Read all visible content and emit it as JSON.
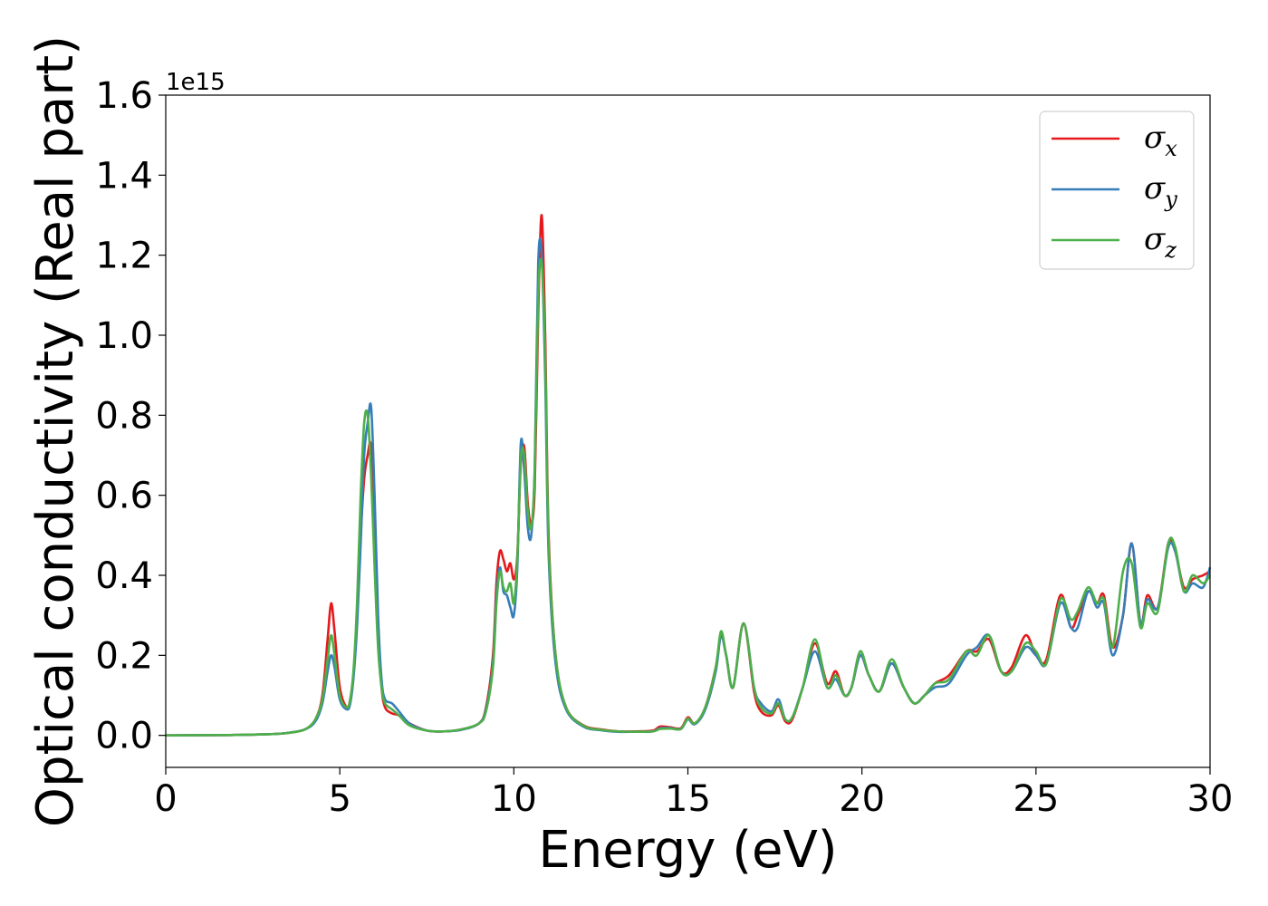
{
  "chart_data": {
    "type": "line",
    "title": "",
    "xlabel": "Energy (eV)",
    "ylabel": "Optical conductivity (Real part)",
    "y_offset_label": "1e15",
    "xlim": [
      0,
      30
    ],
    "ylim": [
      -0.08,
      1.6
    ],
    "xticks": [
      "0",
      "5",
      "10",
      "15",
      "20",
      "25",
      "30"
    ],
    "yticks": [
      "0.0",
      "0.2",
      "0.4",
      "0.6",
      "0.8",
      "1.0",
      "1.2",
      "1.4",
      "1.6"
    ],
    "grid": false,
    "legend_position": "top-right",
    "x": [
      0,
      2,
      3,
      3.5,
      4,
      4.3,
      4.5,
      4.65,
      4.75,
      4.85,
      5.0,
      5.2,
      5.3,
      5.4,
      5.5,
      5.6,
      5.7,
      5.8,
      5.9,
      6.0,
      6.1,
      6.2,
      6.3,
      6.5,
      6.7,
      7.0,
      7.5,
      8.0,
      8.5,
      9.0,
      9.2,
      9.4,
      9.5,
      9.6,
      9.7,
      9.8,
      9.9,
      10.0,
      10.1,
      10.2,
      10.3,
      10.4,
      10.5,
      10.6,
      10.7,
      10.8,
      10.9,
      11.0,
      11.2,
      11.5,
      12.0,
      12.5,
      13.0,
      13.5,
      14.0,
      14.2,
      14.5,
      14.8,
      15.0,
      15.2,
      15.5,
      15.8,
      15.95,
      16.1,
      16.3,
      16.6,
      16.9,
      17.1,
      17.4,
      17.6,
      17.8,
      18.0,
      18.3,
      18.65,
      19.0,
      19.25,
      19.5,
      19.7,
      19.95,
      20.2,
      20.5,
      20.85,
      21.2,
      21.5,
      21.8,
      22.1,
      22.5,
      23.0,
      23.3,
      23.65,
      24.0,
      24.3,
      24.7,
      25.0,
      25.3,
      25.7,
      26.0,
      26.2,
      26.5,
      26.75,
      26.95,
      27.2,
      27.5,
      27.75,
      28.0,
      28.2,
      28.5,
      28.8,
      29.0,
      29.25,
      29.5,
      29.8,
      30.0
    ],
    "series": [
      {
        "name": "σx",
        "color": "#e41a1c",
        "values": [
          0,
          0.001,
          0.003,
          0.006,
          0.015,
          0.04,
          0.1,
          0.24,
          0.33,
          0.26,
          0.12,
          0.07,
          0.09,
          0.16,
          0.3,
          0.5,
          0.64,
          0.7,
          0.72,
          0.5,
          0.25,
          0.12,
          0.07,
          0.055,
          0.05,
          0.03,
          0.012,
          0.01,
          0.015,
          0.03,
          0.07,
          0.2,
          0.38,
          0.46,
          0.44,
          0.41,
          0.43,
          0.39,
          0.45,
          0.68,
          0.72,
          0.58,
          0.53,
          0.62,
          1.05,
          1.3,
          1.0,
          0.5,
          0.2,
          0.07,
          0.025,
          0.015,
          0.01,
          0.01,
          0.012,
          0.022,
          0.02,
          0.018,
          0.045,
          0.03,
          0.07,
          0.17,
          0.25,
          0.2,
          0.12,
          0.28,
          0.11,
          0.06,
          0.05,
          0.075,
          0.035,
          0.04,
          0.12,
          0.23,
          0.13,
          0.16,
          0.1,
          0.12,
          0.2,
          0.15,
          0.11,
          0.18,
          0.12,
          0.08,
          0.1,
          0.13,
          0.15,
          0.21,
          0.21,
          0.24,
          0.16,
          0.17,
          0.25,
          0.2,
          0.19,
          0.35,
          0.27,
          0.3,
          0.36,
          0.33,
          0.35,
          0.22,
          0.3,
          0.48,
          0.28,
          0.35,
          0.32,
          0.48,
          0.46,
          0.37,
          0.39,
          0.4,
          0.41
        ]
      },
      {
        "name": "σy",
        "color": "#377eb8",
        "values": [
          0,
          0.001,
          0.003,
          0.006,
          0.015,
          0.035,
          0.08,
          0.16,
          0.2,
          0.17,
          0.09,
          0.065,
          0.08,
          0.15,
          0.28,
          0.48,
          0.7,
          0.78,
          0.82,
          0.6,
          0.3,
          0.14,
          0.09,
          0.08,
          0.06,
          0.03,
          0.012,
          0.01,
          0.014,
          0.03,
          0.065,
          0.18,
          0.35,
          0.42,
          0.36,
          0.35,
          0.32,
          0.3,
          0.42,
          0.73,
          0.66,
          0.52,
          0.5,
          0.67,
          1.18,
          1.2,
          0.9,
          0.45,
          0.18,
          0.065,
          0.022,
          0.013,
          0.009,
          0.009,
          0.01,
          0.018,
          0.018,
          0.016,
          0.04,
          0.028,
          0.065,
          0.16,
          0.25,
          0.2,
          0.12,
          0.28,
          0.12,
          0.08,
          0.06,
          0.09,
          0.04,
          0.045,
          0.12,
          0.21,
          0.12,
          0.14,
          0.1,
          0.12,
          0.2,
          0.15,
          0.11,
          0.18,
          0.12,
          0.08,
          0.1,
          0.12,
          0.13,
          0.2,
          0.22,
          0.25,
          0.16,
          0.16,
          0.22,
          0.2,
          0.18,
          0.33,
          0.27,
          0.27,
          0.36,
          0.32,
          0.33,
          0.2,
          0.3,
          0.48,
          0.28,
          0.34,
          0.32,
          0.47,
          0.46,
          0.36,
          0.38,
          0.37,
          0.42
        ]
      },
      {
        "name": "σz",
        "color": "#4daf4a",
        "values": [
          0,
          0.001,
          0.003,
          0.006,
          0.015,
          0.04,
          0.09,
          0.19,
          0.25,
          0.2,
          0.1,
          0.07,
          0.09,
          0.17,
          0.34,
          0.6,
          0.78,
          0.8,
          0.65,
          0.42,
          0.22,
          0.12,
          0.08,
          0.065,
          0.05,
          0.025,
          0.012,
          0.01,
          0.015,
          0.03,
          0.06,
          0.17,
          0.33,
          0.41,
          0.37,
          0.36,
          0.38,
          0.33,
          0.44,
          0.69,
          0.7,
          0.56,
          0.52,
          0.66,
          1.1,
          1.18,
          0.95,
          0.48,
          0.2,
          0.07,
          0.024,
          0.014,
          0.01,
          0.009,
          0.01,
          0.016,
          0.017,
          0.016,
          0.042,
          0.03,
          0.07,
          0.17,
          0.26,
          0.2,
          0.12,
          0.28,
          0.12,
          0.07,
          0.055,
          0.08,
          0.04,
          0.045,
          0.12,
          0.24,
          0.12,
          0.15,
          0.1,
          0.12,
          0.21,
          0.15,
          0.11,
          0.19,
          0.12,
          0.08,
          0.1,
          0.13,
          0.14,
          0.21,
          0.2,
          0.25,
          0.16,
          0.16,
          0.23,
          0.21,
          0.18,
          0.34,
          0.29,
          0.31,
          0.37,
          0.33,
          0.34,
          0.22,
          0.41,
          0.43,
          0.27,
          0.33,
          0.31,
          0.48,
          0.47,
          0.36,
          0.4,
          0.38,
          0.4
        ]
      }
    ]
  }
}
